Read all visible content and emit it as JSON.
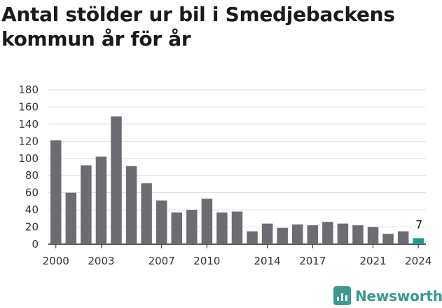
{
  "title": "Antal stölder ur bil i Smedjebackens kommun år för år",
  "brand": {
    "name": "Newsworthy",
    "icon": "newsworthy-logo-icon",
    "color": "#3a9a8e"
  },
  "chart_data": {
    "type": "bar",
    "title": "Antal stölder ur bil i Smedjebackens kommun år för år",
    "xlabel": "",
    "ylabel": "",
    "categories": [
      "2000",
      "2001",
      "2002",
      "2003",
      "2004",
      "2005",
      "2006",
      "2007",
      "2008",
      "2009",
      "2010",
      "2011",
      "2012",
      "2013",
      "2014",
      "2015",
      "2016",
      "2017",
      "2018",
      "2019",
      "2020",
      "2021",
      "2022",
      "2023",
      "2024"
    ],
    "values": [
      121,
      60,
      92,
      102,
      149,
      91,
      71,
      51,
      37,
      40,
      53,
      37,
      38,
      15,
      24,
      19,
      23,
      22,
      26,
      24,
      22,
      20,
      12,
      15,
      7
    ],
    "x_tick_labels": [
      "2000",
      "2003",
      "2007",
      "2010",
      "2014",
      "2017",
      "2021",
      "2024"
    ],
    "ylim": [
      0,
      180
    ],
    "y_ticks": [
      0,
      20,
      40,
      60,
      80,
      100,
      120,
      140,
      160,
      180
    ],
    "grid": true,
    "bar_color": "#6e6c72",
    "highlight_color": "#1b9e8e",
    "highlight_category": "2024",
    "data_labels": [
      {
        "category": "2024",
        "text": "7"
      }
    ]
  }
}
